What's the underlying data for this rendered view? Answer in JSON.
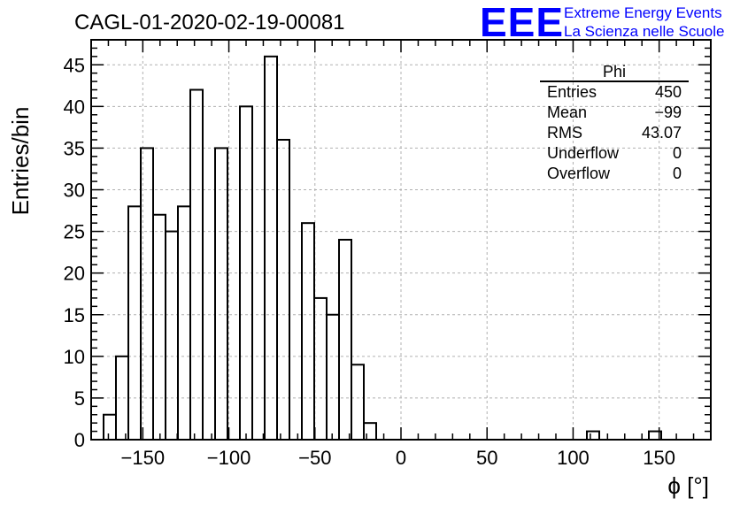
{
  "chart_data": {
    "type": "bar",
    "title": "CAGL-01-2020-02-19-00081",
    "xlabel": "ϕ [°]",
    "ylabel": "Entries/bin",
    "xlim": [
      -180,
      180
    ],
    "ylim": [
      0,
      48
    ],
    "grid": true,
    "bin_width": 7.2,
    "bin_edges_start": -172.8,
    "values": [
      3,
      10,
      28,
      35,
      27,
      25,
      28,
      42,
      0,
      35,
      0,
      40,
      0,
      46,
      36,
      0,
      26,
      17,
      15,
      24,
      9,
      2,
      0,
      0,
      0,
      0,
      0,
      0,
      0,
      0,
      0,
      0,
      0,
      0,
      0,
      0,
      0,
      0,
      0,
      1,
      0,
      0,
      0,
      0,
      1,
      0,
      0,
      0
    ],
    "x_ticks": [
      "−150",
      "−100",
      "−50",
      "0",
      "50",
      "100",
      "150"
    ],
    "x_tick_values": [
      -150,
      -100,
      -50,
      0,
      50,
      100,
      150
    ],
    "y_ticks": [
      "0",
      "5",
      "10",
      "15",
      "20",
      "25",
      "30",
      "35",
      "40",
      "45"
    ],
    "y_tick_values": [
      0,
      5,
      10,
      15,
      20,
      25,
      30,
      35,
      40,
      45
    ]
  },
  "stats_box": {
    "title": "Phi",
    "rows": [
      {
        "label": "Entries",
        "value": "450"
      },
      {
        "label": "Mean",
        "value": "−99"
      },
      {
        "label": "RMS",
        "value": "43.07"
      },
      {
        "label": "Underflow",
        "value": "0"
      },
      {
        "label": "Overflow",
        "value": "0"
      }
    ]
  },
  "logo": {
    "letters": "EEE",
    "line1": "Extreme Energy Events",
    "line2": "La Scienza nelle Scuole",
    "color": "#0000ff"
  }
}
